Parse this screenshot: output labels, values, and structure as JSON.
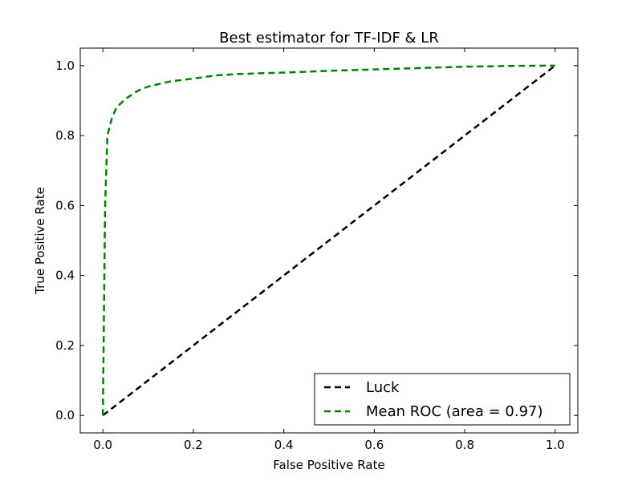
{
  "chart_data": {
    "type": "line",
    "title": "Best estimator for TF-IDF & LR",
    "xlabel": "False Positive Rate",
    "ylabel": "True Positive Rate",
    "xlim": [
      -0.05,
      1.05
    ],
    "ylim": [
      -0.05,
      1.05
    ],
    "xticks": [
      0.0,
      0.2,
      0.4,
      0.6,
      0.8,
      1.0
    ],
    "yticks": [
      0.0,
      0.2,
      0.4,
      0.6,
      0.8,
      1.0
    ],
    "xtick_labels": [
      "0.0",
      "0.2",
      "0.4",
      "0.6",
      "0.8",
      "1.0"
    ],
    "ytick_labels": [
      "0.0",
      "0.2",
      "0.4",
      "0.6",
      "0.8",
      "1.0"
    ],
    "grid": false,
    "legend_position": "bottom-right",
    "series": [
      {
        "name": "Luck",
        "color": "#000000",
        "style": "dashed",
        "x": [
          0.0,
          1.0
        ],
        "y": [
          0.0,
          1.0
        ]
      },
      {
        "name": "Mean ROC (area = 0.97)",
        "color": "#008000",
        "style": "dashed",
        "x": [
          0.0,
          0.005,
          0.01,
          0.02,
          0.03,
          0.05,
          0.08,
          0.1,
          0.15,
          0.2,
          0.25,
          0.3,
          0.4,
          0.5,
          0.6,
          0.7,
          0.8,
          0.9,
          1.0
        ],
        "y": [
          0.0,
          0.6,
          0.8,
          0.85,
          0.88,
          0.905,
          0.93,
          0.94,
          0.955,
          0.963,
          0.972,
          0.976,
          0.98,
          0.985,
          0.989,
          0.993,
          0.997,
          0.999,
          1.0
        ]
      }
    ]
  }
}
